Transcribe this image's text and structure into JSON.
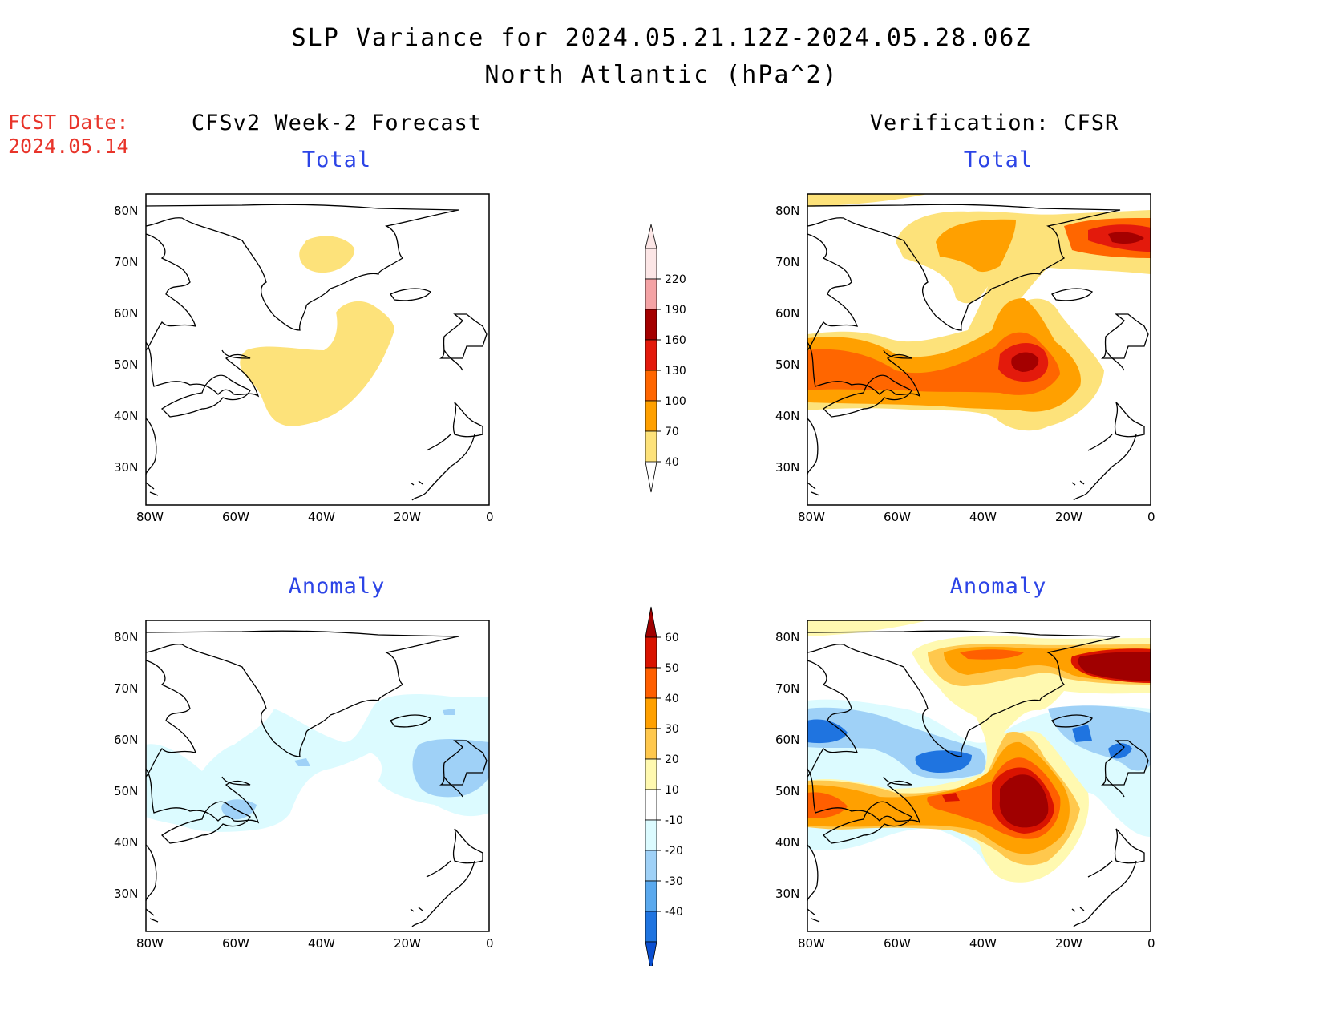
{
  "header": {
    "title": "SLP Variance for 2024.05.21.12Z-2024.05.28.06Z",
    "subtitle": "North Atlantic (hPa^2)"
  },
  "fcst_date": {
    "label": "FCST Date:",
    "value": "2024.05.14"
  },
  "columns": {
    "left": "CFSv2 Week-2 Forecast",
    "right": "Verification: CFSR"
  },
  "panels": {
    "total_label": "Total",
    "anomaly_label": "Anomaly"
  },
  "axes": {
    "lat_ticks": [
      "80N",
      "70N",
      "60N",
      "50N",
      "40N",
      "30N"
    ],
    "lon_ticks": [
      "80W",
      "60W",
      "40W",
      "20W",
      "0"
    ]
  },
  "total_colorbar": {
    "levels": [
      "220",
      "190",
      "160",
      "130",
      "100",
      "70",
      "40"
    ],
    "colors": [
      "#fce6e6",
      "#f4a3a5",
      "#a40000",
      "#e31a0c",
      "#ff6600",
      "#ffa000",
      "#fde27a"
    ]
  },
  "anomaly_colorbar": {
    "levels": [
      "60",
      "50",
      "40",
      "30",
      "20",
      "10",
      "-10",
      "-20",
      "-30",
      "-40"
    ],
    "colors": [
      "#a00000",
      "#d91300",
      "#ff5f00",
      "#ffa000",
      "#ffc84d",
      "#fff9b0",
      "#ffffff",
      "#dcfbff",
      "#9fd1f7",
      "#5aa9ee",
      "#1f74e0",
      "#0b4fd0"
    ]
  },
  "chart_data": {
    "type": "heatmap",
    "region": "North Atlantic",
    "lon_range": [
      "80W",
      "0"
    ],
    "lat_range": [
      "25N",
      "85N"
    ],
    "panels": [
      {
        "column": "CFSv2 Week-2 Forecast",
        "field": "Total",
        "max_level": "40-70"
      },
      {
        "column": "Verification: CFSR",
        "field": "Total",
        "max_level": "160-190"
      },
      {
        "column": "CFSv2 Week-2 Forecast",
        "field": "Anomaly",
        "min_level": "-20 to -30"
      },
      {
        "column": "Verification: CFSR",
        "field": "Anomaly",
        "max_level": ">60",
        "min_level": "-30 to -40"
      }
    ]
  }
}
